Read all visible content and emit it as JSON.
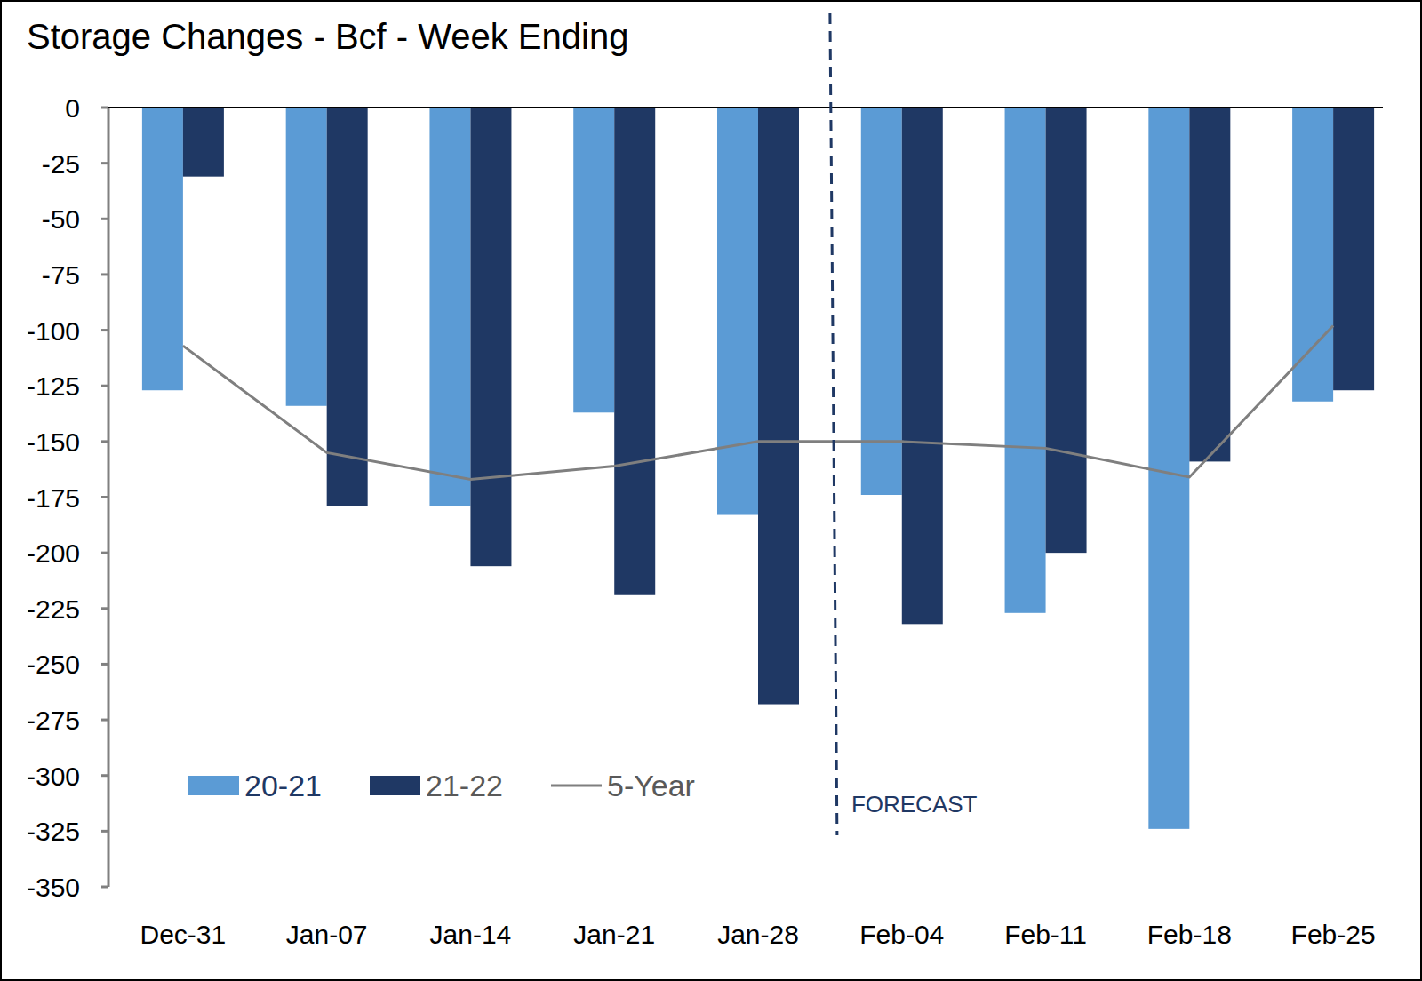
{
  "chart_data": {
    "type": "bar",
    "title": "Storage Changes - Bcf - Week Ending",
    "categories": [
      "Dec-31",
      "Jan-07",
      "Jan-14",
      "Jan-21",
      "Jan-28",
      "Feb-04",
      "Feb-11",
      "Feb-18",
      "Feb-25"
    ],
    "series": [
      {
        "name": "20-21",
        "type": "bar",
        "color": "#5b9bd5",
        "values": [
          -127,
          -134,
          -179,
          -137,
          -183,
          -174,
          -227,
          -324,
          -132
        ]
      },
      {
        "name": "21-22",
        "type": "bar",
        "color": "#1f3864",
        "values": [
          -31,
          -179,
          -206,
          -219,
          -268,
          -232,
          -200,
          -159,
          -127
        ]
      },
      {
        "name": "5-Year",
        "type": "line",
        "color": "#7f7f7f",
        "values": [
          -107,
          -155,
          -167,
          -161,
          -150,
          -150,
          -153,
          -166,
          -98
        ]
      }
    ],
    "ylim": [
      -350,
      0
    ],
    "yticks": [
      0,
      -25,
      -50,
      -75,
      -100,
      -125,
      -150,
      -175,
      -200,
      -225,
      -250,
      -275,
      -300,
      -325,
      -350
    ],
    "legend": "lower left",
    "annotations": [
      {
        "text": "FORECAST",
        "x": "Feb-04"
      }
    ]
  }
}
